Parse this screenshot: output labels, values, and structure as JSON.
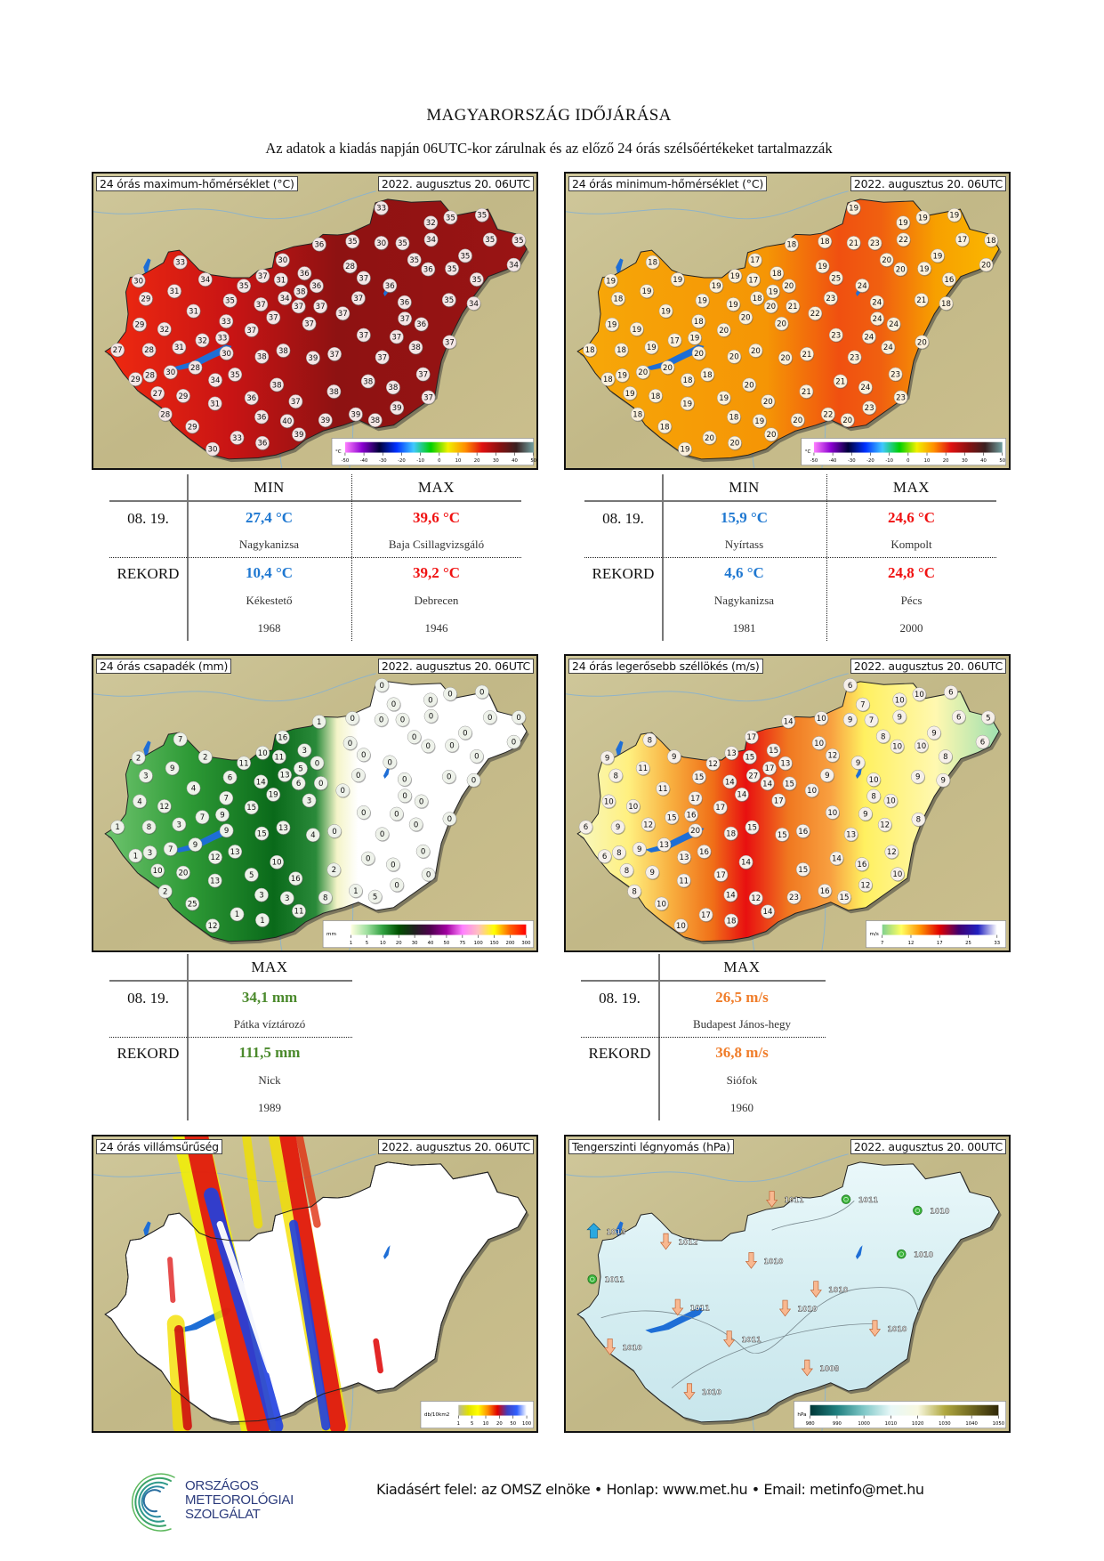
{
  "header": {
    "title": "MAGYARORSZÁG IDŐJÁRÁSA",
    "subtitle": "Az adatok a kiadás napján 06UTC-kor zárulnak és az előző 24 órás szélsőértékeket tartalmazzák"
  },
  "colors": {
    "min": "#1f78d1",
    "max": "#f01212",
    "precip": "#4b8a2c",
    "wind": "#f07d2a"
  },
  "maps": {
    "tmax": {
      "title": "24 órás maximum-hőmérséklet (°C)",
      "date": "2022. augusztus 20. 06UTC",
      "legend_unit": "°C",
      "legend_ticks": [
        "-50",
        "-40",
        "-30",
        "-20",
        "-10",
        "0",
        "10",
        "20",
        "30",
        "40",
        "50"
      ],
      "stations": [
        33,
        32,
        35,
        35,
        36,
        35,
        30,
        35,
        34,
        35,
        35,
        30,
        28,
        35,
        36,
        35,
        35,
        34,
        33,
        30,
        34,
        35,
        37,
        31,
        36,
        36,
        38,
        37,
        36,
        35,
        29,
        31,
        35,
        37,
        34,
        37,
        37,
        37,
        36,
        35,
        34,
        31,
        37,
        37,
        37,
        37,
        36,
        29,
        32,
        33,
        37,
        37,
        37,
        37,
        27,
        28,
        31,
        32,
        33,
        30,
        38,
        38,
        39,
        37,
        37,
        38,
        29,
        28,
        30,
        28,
        34,
        35,
        37,
        27,
        29,
        36,
        38,
        37,
        38,
        38,
        38,
        37,
        28,
        31,
        36,
        40,
        39,
        39,
        38,
        39,
        29,
        33,
        36,
        39,
        30
      ]
    },
    "tmin": {
      "title": "24 órás minimum-hőmérséklet (°C)",
      "date": "2022. augusztus 20. 06UTC",
      "legend_unit": "°C",
      "legend_ticks": [
        "-50",
        "-40",
        "-30",
        "-20",
        "-10",
        "0",
        "10",
        "20",
        "30",
        "40",
        "50"
      ],
      "stations": [
        19,
        19,
        19,
        19,
        18,
        18,
        21,
        23,
        22,
        17,
        18,
        17,
        19,
        20,
        20,
        19,
        19,
        20,
        18,
        19,
        19,
        19,
        19,
        17,
        18,
        20,
        19,
        25,
        24,
        16,
        18,
        19,
        19,
        19,
        18,
        20,
        21,
        23,
        24,
        21,
        18,
        19,
        20,
        20,
        22,
        24,
        24,
        19,
        19,
        18,
        20,
        23,
        24,
        20,
        18,
        18,
        19,
        17,
        19,
        20,
        20,
        20,
        20,
        21,
        23,
        24,
        18,
        19,
        20,
        20,
        18,
        18,
        23,
        19,
        18,
        19,
        20,
        20,
        21,
        21,
        24,
        23,
        18,
        19,
        18,
        19,
        20,
        22,
        20,
        23,
        18,
        20,
        20,
        20,
        19
      ]
    },
    "precip": {
      "title": "24 órás csapadék (mm)",
      "date": "2022. augusztus 20. 06UTC",
      "legend_unit": "mm",
      "legend_ticks": [
        "1",
        "5",
        "10",
        "20",
        "30",
        "40",
        "50",
        "75",
        "100",
        "150",
        "200",
        "300"
      ],
      "stations": [
        0,
        0,
        0,
        0,
        0,
        1,
        0,
        0,
        0,
        0,
        0,
        0,
        16,
        0,
        0,
        0,
        0,
        0,
        0,
        7,
        2,
        2,
        11,
        10,
        11,
        3,
        5,
        0,
        0,
        0,
        0,
        3,
        9,
        6,
        14,
        13,
        6,
        0,
        0,
        0,
        0,
        0,
        4,
        19,
        3,
        0,
        0,
        0,
        4,
        12,
        7,
        15,
        0,
        0,
        0,
        1,
        8,
        3,
        7,
        9,
        9,
        15,
        13,
        4,
        0,
        0,
        0,
        1,
        3,
        7,
        9,
        12,
        13,
        0,
        10,
        20,
        5,
        10,
        16,
        2,
        0,
        0,
        0,
        2,
        13,
        3,
        3,
        8,
        1,
        5,
        0,
        25,
        1,
        1,
        11,
        12
      ]
    },
    "wind": {
      "title": "24 órás legerősebb széllökés (m/s)",
      "date": "2022. augusztus 20. 06UTC",
      "legend_unit": "m/s",
      "legend_ticks": [
        "7",
        "12",
        "17",
        "25",
        "33"
      ],
      "stations": [
        6,
        7,
        10,
        10,
        6,
        14,
        10,
        9,
        7,
        9,
        6,
        5,
        17,
        10,
        8,
        10,
        9,
        10,
        6,
        8,
        9,
        9,
        12,
        13,
        15,
        15,
        13,
        17,
        27,
        14,
        15,
        12,
        9,
        8,
        8,
        11,
        15,
        14,
        9,
        10,
        9,
        9,
        11,
        14,
        17,
        10,
        8,
        10,
        10,
        10,
        17,
        17,
        10,
        9,
        8,
        6,
        9,
        12,
        15,
        16,
        20,
        18,
        15,
        15,
        16,
        13,
        12,
        6,
        8,
        9,
        13,
        13,
        16,
        12,
        8,
        9,
        14,
        17,
        15,
        14,
        16,
        10,
        8,
        11,
        14,
        12,
        23,
        16,
        15,
        12,
        10,
        17,
        18,
        14,
        10
      ]
    },
    "lightning": {
      "title": "24 órás villámsűrűség",
      "date": "2022. augusztus 20. 06UTC",
      "legend_unit": "db/10km2",
      "legend_ticks": [
        "1",
        "5",
        "10",
        "20",
        "50",
        "100"
      ]
    },
    "pressure": {
      "title": "Tengerszinti légnyomás (hPa)",
      "date": "2022. augusztus 20. 00UTC",
      "legend_unit": "hPa",
      "legend_ticks": [
        "980",
        "990",
        "1000",
        "1010",
        "1020",
        "1030",
        "1040",
        "1050"
      ],
      "stations": [
        {
          "value": "1011",
          "symbol": "falling-arrow"
        },
        {
          "value": "1011",
          "symbol": "steady-circle"
        },
        {
          "value": "1010",
          "symbol": "steady-circle"
        },
        {
          "value": "1013",
          "symbol": "rising-arrow"
        },
        {
          "value": "1012",
          "symbol": "falling-arrow"
        },
        {
          "value": "1010",
          "symbol": "falling-arrow"
        },
        {
          "value": "1010",
          "symbol": "steady-circle"
        },
        {
          "value": "1011",
          "symbol": "steady-circle"
        },
        {
          "value": "1010",
          "symbol": "falling-arrow"
        },
        {
          "value": "1011",
          "symbol": "falling-arrow"
        },
        {
          "value": "1010",
          "symbol": "falling-arrow"
        },
        {
          "value": "1010",
          "symbol": "falling-arrow"
        },
        {
          "value": "1011",
          "symbol": "falling-arrow"
        },
        {
          "value": "1010",
          "symbol": "falling-arrow"
        },
        {
          "value": "1008",
          "symbol": "falling-arrow"
        },
        {
          "value": "1010",
          "symbol": "falling-arrow"
        }
      ]
    }
  },
  "tables": {
    "temp_max": {
      "col_min": "MIN",
      "col_max": "MAX",
      "row_day": "08. 19.",
      "row_record": "REKORD",
      "day_min": "27,4 °C",
      "day_min_loc": "Nagykanizsa",
      "day_max": "39,6 °C",
      "day_max_loc": "Baja Csillagvizsgáló",
      "rec_min": "10,4 °C",
      "rec_min_loc": "Kékestető",
      "rec_min_year": "1968",
      "rec_max": "39,2 °C",
      "rec_max_loc": "Debrecen",
      "rec_max_year": "1946"
    },
    "temp_min": {
      "col_min": "MIN",
      "col_max": "MAX",
      "row_day": "08. 19.",
      "row_record": "REKORD",
      "day_min": "15,9 °C",
      "day_min_loc": "Nyírtass",
      "day_max": "24,6 °C",
      "day_max_loc": "Kompolt",
      "rec_min": "4,6 °C",
      "rec_min_loc": "Nagykanizsa",
      "rec_min_year": "1981",
      "rec_max": "24,8 °C",
      "rec_max_loc": "Pécs",
      "rec_max_year": "2000"
    },
    "precip": {
      "col_max": "MAX",
      "row_day": "08. 19.",
      "row_record": "REKORD",
      "day_max": "34,1 mm",
      "day_max_loc": "Pátka víztározó",
      "rec_max": "111,5 mm",
      "rec_max_loc": "Nick",
      "rec_max_year": "1989"
    },
    "wind": {
      "col_max": "MAX",
      "row_day": "08. 19.",
      "row_record": "REKORD",
      "day_max": "26,5 m/s",
      "day_max_loc": "Budapest János-hegy",
      "rec_max": "36,8 m/s",
      "rec_max_loc": "Siófok",
      "rec_max_year": "1960"
    }
  },
  "footer": {
    "logo_lines": [
      "ORSZÁGOS",
      "METEOROLÓGIAI",
      "SZOLGÁLAT"
    ],
    "text": "Kiadásért felel: az OMSZ elnöke • Honlap: www.met.hu • Email: metinfo@met.hu"
  }
}
